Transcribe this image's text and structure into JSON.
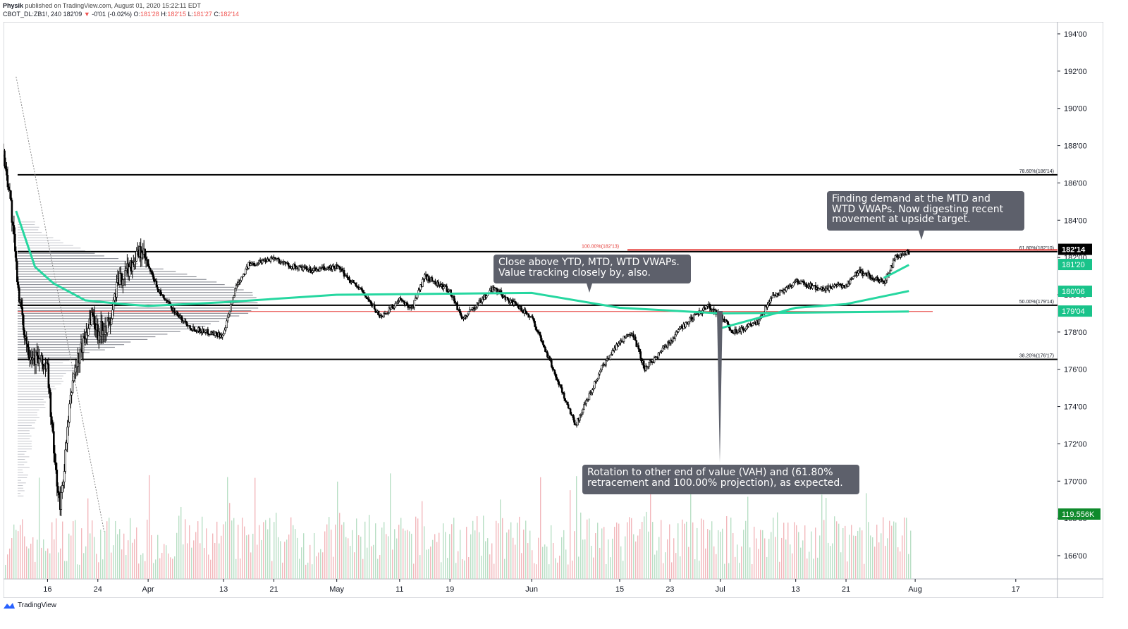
{
  "header": {
    "author": "Physik",
    "published": "published on TradingView.com, August 01, 2020 15:22:11 EDT",
    "symbol": "CBOT_DL:ZB1!, 240",
    "last": "182'09",
    "change": "-0'01 (-0.02%)",
    "open_label": "O:",
    "open": "181'28",
    "high_label": "H:",
    "high": "182'15",
    "low_label": "L:",
    "low": "181'27",
    "close_label": "C:",
    "close": "182'14"
  },
  "footer": {
    "brand": "TradingView"
  },
  "annotations": {
    "demand": "Finding demand at the MTD and\nWTD VWAPs. Now digesting recent\nmovement at upside target.",
    "close_above": "Close above YTD, MTD, WTD VWAPs.\nValue tracking closely by, also.",
    "rotation": "Rotation to other end of value (VAH) and (61.80%\nretracement and 100.00% projection), as expected."
  },
  "colors": {
    "vwap": "#26d7a0",
    "fib_line": "#000000",
    "projection": "#e53935",
    "volume_up": "#b9dfc5",
    "volume_down": "#f2b8bc",
    "callout": "#5d606b",
    "price_tag": "#000000",
    "vwap_tag": "#19c38a",
    "volume_tag": "#0f8a2c"
  },
  "chart_data": {
    "type": "line",
    "title": "",
    "xlabel": "",
    "ylabel": "",
    "price_unit": "32nds",
    "ylim": [
      165.0,
      195.0
    ],
    "y_ticks": [
      "166'00",
      "168'00",
      "170'00",
      "172'00",
      "174'00",
      "176'00",
      "178'00",
      "180'00",
      "182'00",
      "184'00",
      "186'00",
      "188'00",
      "190'00",
      "192'00",
      "194'00"
    ],
    "y_tick_values": [
      166,
      168,
      170,
      172,
      174,
      176,
      178,
      180,
      182,
      184,
      186,
      188,
      190,
      192,
      194
    ],
    "x_ticks": [
      "16",
      "24",
      "Apr",
      "13",
      "21",
      "May",
      "11",
      "19",
      "Jun",
      "15",
      "23",
      "Jul",
      "13",
      "21",
      "Aug",
      "17"
    ],
    "x_tick_dates": [
      "2020-03-16",
      "2020-03-24",
      "2020-04-01",
      "2020-04-13",
      "2020-04-21",
      "2020-05-01",
      "2020-05-11",
      "2020-05-19",
      "2020-06-01",
      "2020-06-15",
      "2020-06-23",
      "2020-07-01",
      "2020-07-13",
      "2020-07-21",
      "2020-08-01",
      "2020-08-17"
    ],
    "x_range": [
      "2020-03-09",
      "2020-08-27"
    ],
    "horizontal_levels": [
      {
        "label": "78.60%(186'14)",
        "value": 186.4375,
        "style": "black"
      },
      {
        "label": "61.80%(182'10)",
        "value": 182.3125,
        "style": "black"
      },
      {
        "label": "100.00%(182'13)",
        "value": 182.40625,
        "style": "red"
      },
      {
        "label": "50.00%(179'14)",
        "value": 179.4375,
        "style": "black"
      },
      {
        "label": "38.20%(176'17)",
        "value": 176.53125,
        "style": "black"
      },
      {
        "label": "",
        "value": 179.1,
        "style": "red-thin"
      }
    ],
    "price_tags": [
      {
        "label": "182'14",
        "value": 182.4375,
        "kind": "price"
      },
      {
        "label": "181'20",
        "value": 181.625,
        "kind": "vwap"
      },
      {
        "label": "180'06",
        "value": 180.1875,
        "kind": "vwap"
      },
      {
        "label": "179'04",
        "value": 179.125,
        "kind": "vwap"
      },
      {
        "label": "119.556K",
        "kind": "volume"
      }
    ],
    "series": [
      {
        "type": "candlestick-close",
        "x": [
          "2020-03-09",
          "2020-03-10",
          "2020-03-11",
          "2020-03-12",
          "2020-03-13",
          "2020-03-16",
          "2020-03-17",
          "2020-03-18",
          "2020-03-19",
          "2020-03-20",
          "2020-03-23",
          "2020-03-24",
          "2020-03-25",
          "2020-03-26",
          "2020-03-27",
          "2020-03-30",
          "2020-03-31",
          "2020-04-01",
          "2020-04-03",
          "2020-04-06",
          "2020-04-08",
          "2020-04-13",
          "2020-04-15",
          "2020-04-17",
          "2020-04-21",
          "2020-04-23",
          "2020-04-27",
          "2020-05-01",
          "2020-05-05",
          "2020-05-08",
          "2020-05-11",
          "2020-05-13",
          "2020-05-15",
          "2020-05-19",
          "2020-05-21",
          "2020-05-26",
          "2020-05-28",
          "2020-06-01",
          "2020-06-03",
          "2020-06-05",
          "2020-06-08",
          "2020-06-10",
          "2020-06-12",
          "2020-06-15",
          "2020-06-17",
          "2020-06-19",
          "2020-06-23",
          "2020-06-25",
          "2020-06-29",
          "2020-07-01",
          "2020-07-03",
          "2020-07-07",
          "2020-07-09",
          "2020-07-13",
          "2020-07-15",
          "2020-07-17",
          "2020-07-21",
          "2020-07-23",
          "2020-07-27",
          "2020-07-29",
          "2020-07-31"
        ],
        "values": [
          187.5,
          185.5,
          181.5,
          178.5,
          177.0,
          176.0,
          171.5,
          168.5,
          172.0,
          175.5,
          179.0,
          178.0,
          178.3,
          178.5,
          180.5,
          182.0,
          182.3,
          181.5,
          180.0,
          178.8,
          178.2,
          177.8,
          180.5,
          181.6,
          182.0,
          181.6,
          181.3,
          181.5,
          180.2,
          178.8,
          179.7,
          179.3,
          181.0,
          180.2,
          178.7,
          180.4,
          179.8,
          178.8,
          177.2,
          175.5,
          173.0,
          174.5,
          176.0,
          177.5,
          178.0,
          176.0,
          177.5,
          178.3,
          179.4,
          178.9,
          178.0,
          178.5,
          179.8,
          180.7,
          180.5,
          180.3,
          180.5,
          181.3,
          180.6,
          182.1,
          182.3
        ]
      },
      {
        "name": "",
        "type": "vwap-ytd",
        "x": [
          "2020-04-13",
          "2020-05-01",
          "2020-06-01",
          "2020-06-15",
          "2020-07-01",
          "2020-07-31"
        ],
        "values": [
          179.6,
          180.0,
          180.1,
          179.3,
          179.0,
          179.1
        ]
      },
      {
        "name": "",
        "type": "vwap-mtd",
        "x": [
          "2020-07-01",
          "2020-07-13",
          "2020-07-21",
          "2020-07-31"
        ],
        "values": [
          178.2,
          179.3,
          179.5,
          180.2
        ]
      },
      {
        "name": "",
        "type": "vwap-wtd",
        "x": [
          "2020-07-27",
          "2020-07-31"
        ],
        "values": [
          180.9,
          181.6
        ]
      }
    ],
    "legend": "none",
    "grid": false
  }
}
